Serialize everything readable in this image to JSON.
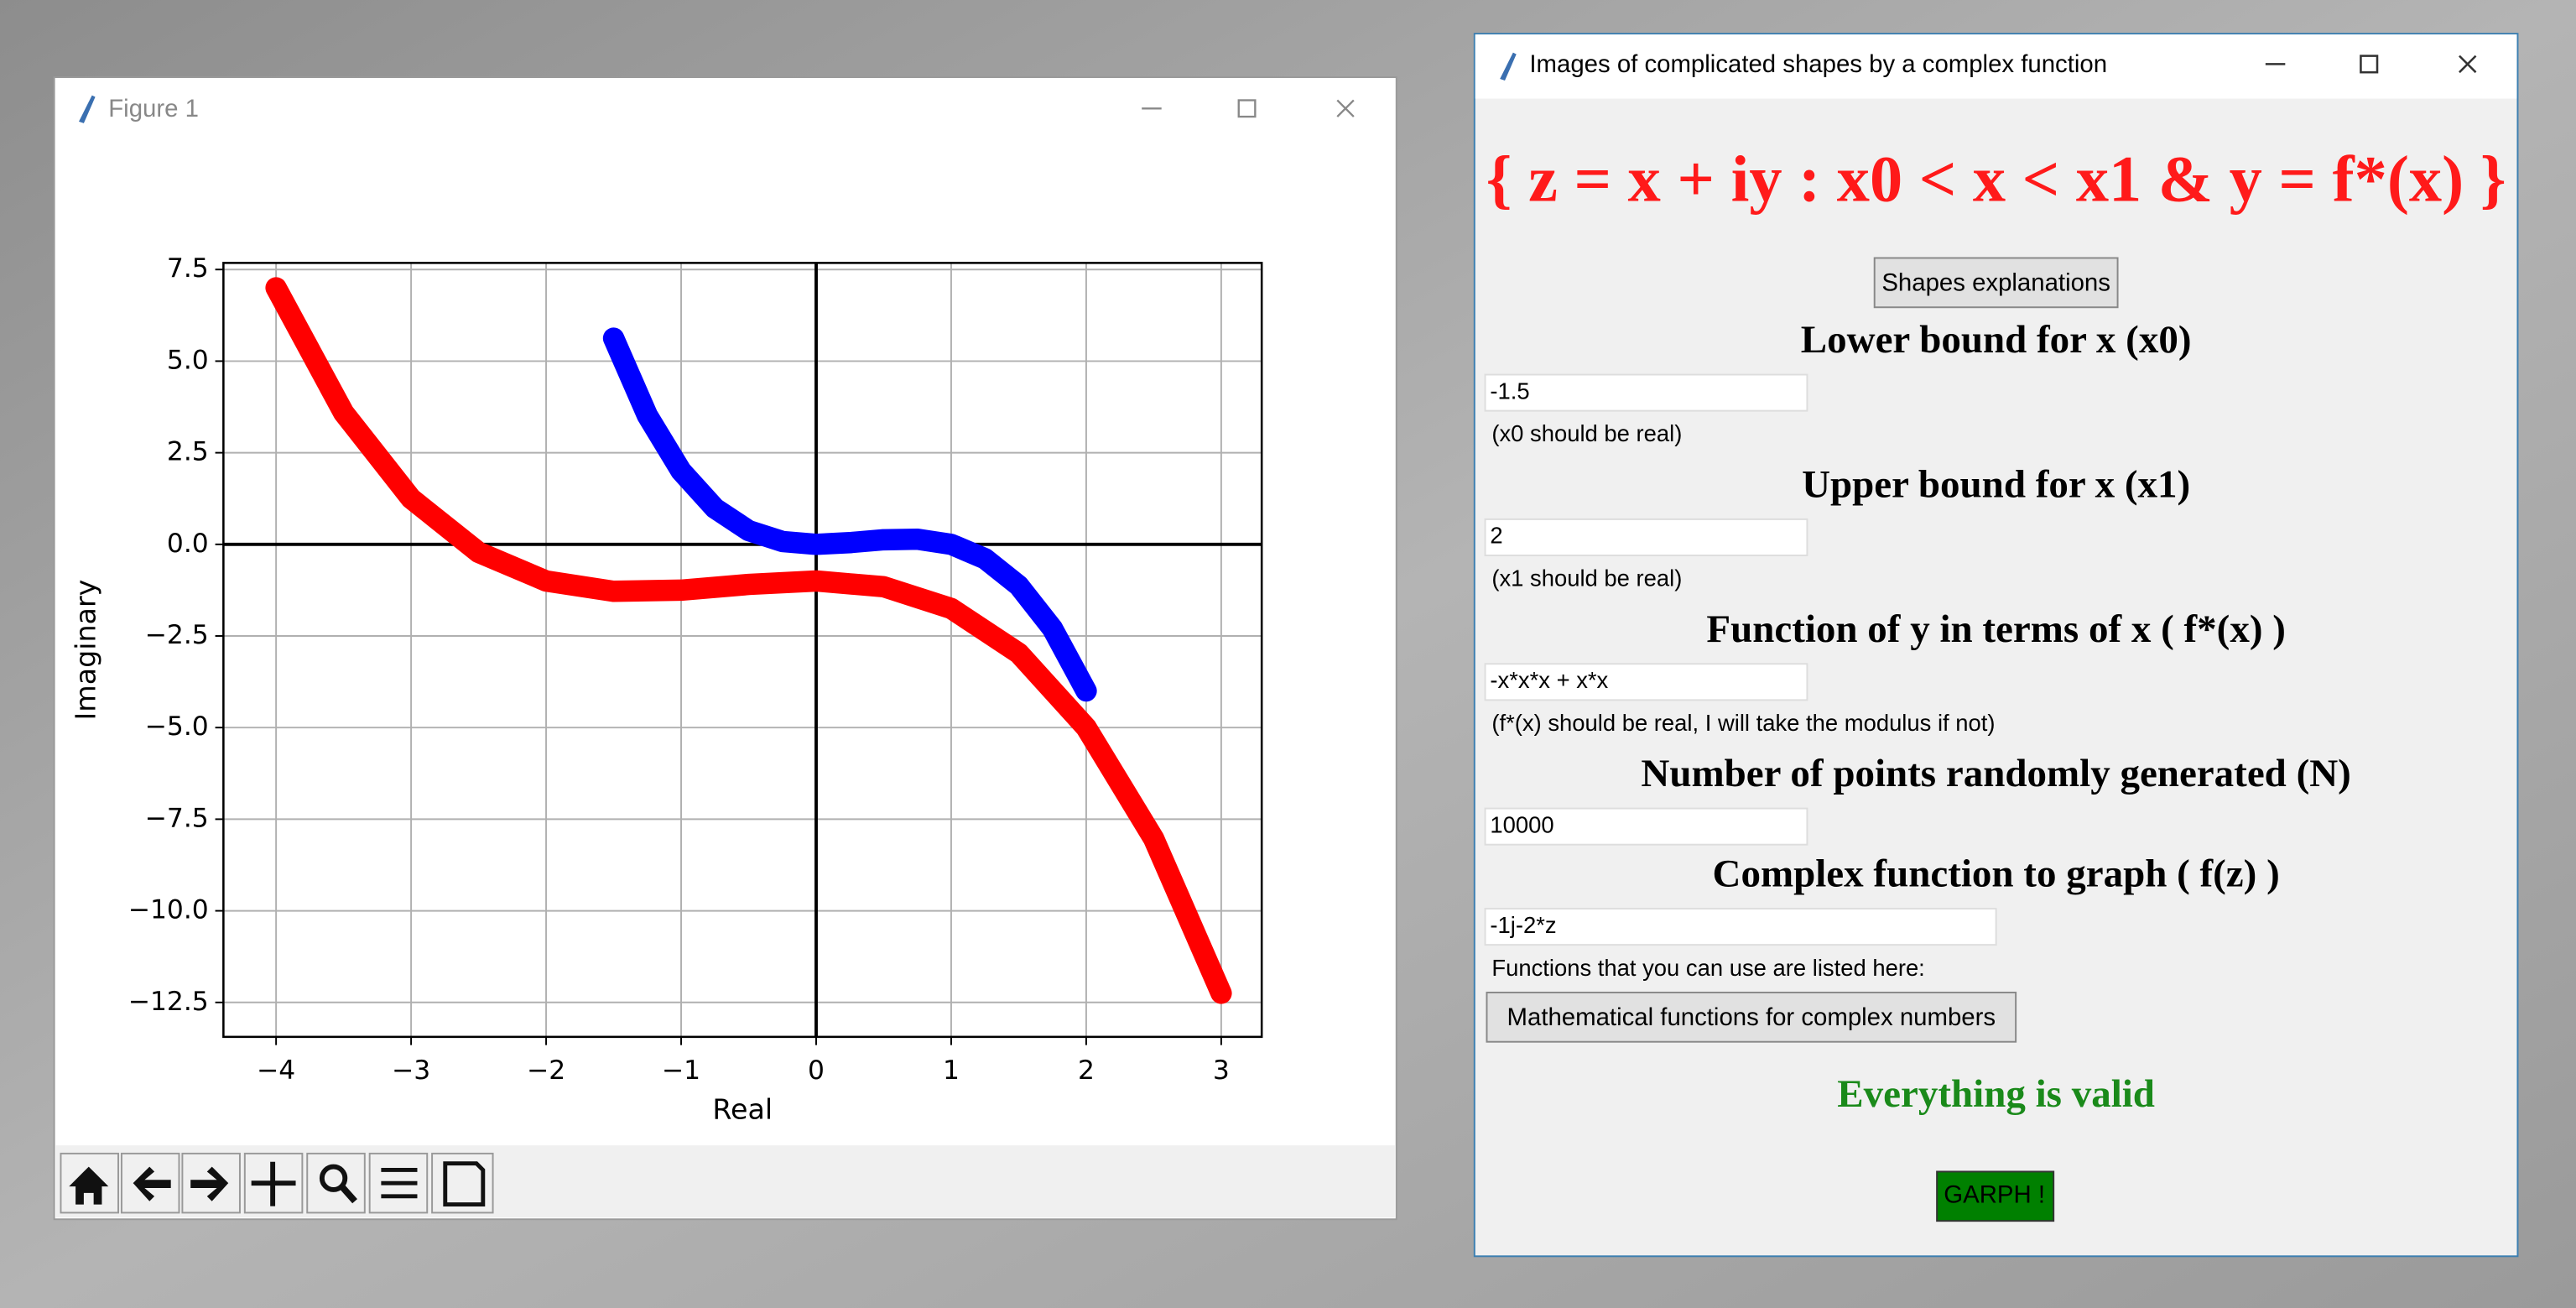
{
  "figure_window": {
    "title": "Figure 1",
    "chart_data": {
      "type": "line",
      "xlabel": "Real",
      "ylabel": "Imaginary",
      "xlim": [
        -4.39,
        3.3
      ],
      "ylim": [
        -13.44,
        7.68
      ],
      "xticks": [
        {
          "value": -4,
          "label": "−4"
        },
        {
          "value": -3,
          "label": "−3"
        },
        {
          "value": -2,
          "label": "−2"
        },
        {
          "value": -1,
          "label": "−1"
        },
        0,
        1,
        2,
        3
      ],
      "yticks": [
        {
          "value": 7.5,
          "label": "7.5"
        },
        {
          "value": 5,
          "label": "5.0"
        },
        {
          "value": 2.5,
          "label": "2.5"
        },
        {
          "value": 0,
          "label": "0.0"
        },
        {
          "value": -2.5,
          "label": "−2.5"
        },
        {
          "value": -5,
          "label": "−5.0"
        },
        {
          "value": -7.5,
          "label": "−7.5"
        },
        {
          "value": -10,
          "label": "−10.0"
        },
        {
          "value": -12.5,
          "label": "−12.5"
        }
      ],
      "grid": true,
      "origin_lines": true,
      "series": [
        {
          "color": "#0000ff",
          "x": [
            -1.5,
            -1.25,
            -1,
            -0.75,
            -0.5,
            -0.25,
            0,
            0.25,
            0.5,
            0.75,
            1,
            1.25,
            1.5,
            1.75,
            2
          ],
          "values": [
            5.625,
            3.515625,
            2,
            0.984375,
            0.375,
            0.078125,
            0,
            0.046875,
            0.125,
            0.140625,
            0,
            -0.390625,
            -1.125,
            -2.296875,
            -4
          ]
        },
        {
          "color": "#ff0000",
          "x": [
            3,
            2.5,
            2,
            1.5,
            1,
            0.5,
            0,
            -0.5,
            -1,
            -1.5,
            -2,
            -2.5,
            -3,
            -3.5,
            -4
          ],
          "values": [
            -12.25,
            -8.03125,
            -5,
            -2.96875,
            -1.75,
            -1.15625,
            -1,
            -1.09375,
            -1.25,
            -1.28125,
            -1,
            -0.21875,
            1.25,
            3.59375,
            7
          ]
        }
      ]
    }
  },
  "form_window": {
    "title": "Images of complicated shapes by a complex function",
    "heading": "{ z = x + iy :   x0 < x < x1 & y = f*(x) }",
    "explain_button": "Shapes explanations",
    "fields": [
      {
        "label": "Lower bound for x (x0)",
        "value": "-1.5",
        "hint": "(x0 should be real)"
      },
      {
        "label": "Upper bound for x (x1)",
        "value": "2",
        "hint": "(x1 should be real)"
      },
      {
        "label": "Function of y in terms of x ( f*(x) )",
        "value": "-x*x*x + x*x",
        "hint": "(f*(x) should be real, I will take the modulus if not)"
      },
      {
        "label": "Number of points randomly generated (N)",
        "value": "10000"
      },
      {
        "label": "Complex function to graph ( f(z) )",
        "value": "-1j-2*z",
        "hint": "Functions that you can use are listed here:"
      }
    ],
    "functions_button": "Mathematical functions for complex numbers",
    "status": "Everything is valid",
    "graph_button": "GARPH !"
  }
}
